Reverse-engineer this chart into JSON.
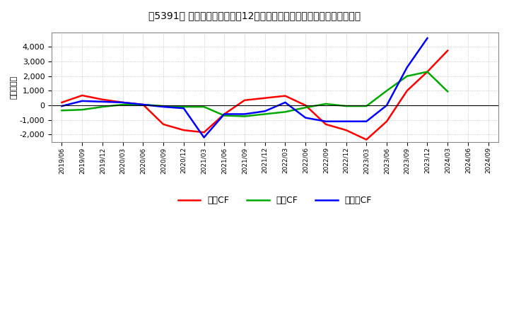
{
  "title_prefix": "5391",
  "ylabel": "（百万円）",
  "background_color": "#ffffff",
  "plot_bg_color": "#ffffff",
  "grid_color": "#aaaaaa",
  "x_labels": [
    "2019/06",
    "2019/09",
    "2019/12",
    "2020/03",
    "2020/06",
    "2020/09",
    "2020/12",
    "2021/03",
    "2021/06",
    "2021/09",
    "2021/12",
    "2022/03",
    "2022/06",
    "2022/09",
    "2022/12",
    "2023/03",
    "2023/06",
    "2023/09",
    "2023/12",
    "2024/03",
    "2024/06",
    "2024/09"
  ],
  "eigyo_cf": [
    200,
    680,
    400,
    200,
    50,
    -1300,
    -1700,
    -1850,
    -600,
    350,
    500,
    650,
    0,
    -1300,
    -1700,
    -2350,
    -1100,
    1000,
    2300,
    3750,
    null,
    null
  ],
  "toshi_cf": [
    -350,
    -300,
    -100,
    50,
    50,
    -50,
    -100,
    -100,
    -700,
    -750,
    -600,
    -450,
    -150,
    100,
    -50,
    -50,
    1000,
    2000,
    2300,
    950,
    null,
    null
  ],
  "free_cf": [
    -50,
    300,
    250,
    200,
    50,
    -100,
    -200,
    -2200,
    -600,
    -600,
    -400,
    200,
    -850,
    -1100,
    -1100,
    -1100,
    0,
    2600,
    4600,
    null,
    null,
    null
  ],
  "eigyo_color": "#ff0000",
  "toshi_color": "#00aa00",
  "free_color": "#0000ff",
  "ylim": [
    -2500,
    5000
  ],
  "yticks": [
    -2000,
    -1000,
    0,
    1000,
    2000,
    3000,
    4000
  ],
  "legend_labels": [
    "営業CF",
    "投資CF",
    "フリーCF"
  ]
}
